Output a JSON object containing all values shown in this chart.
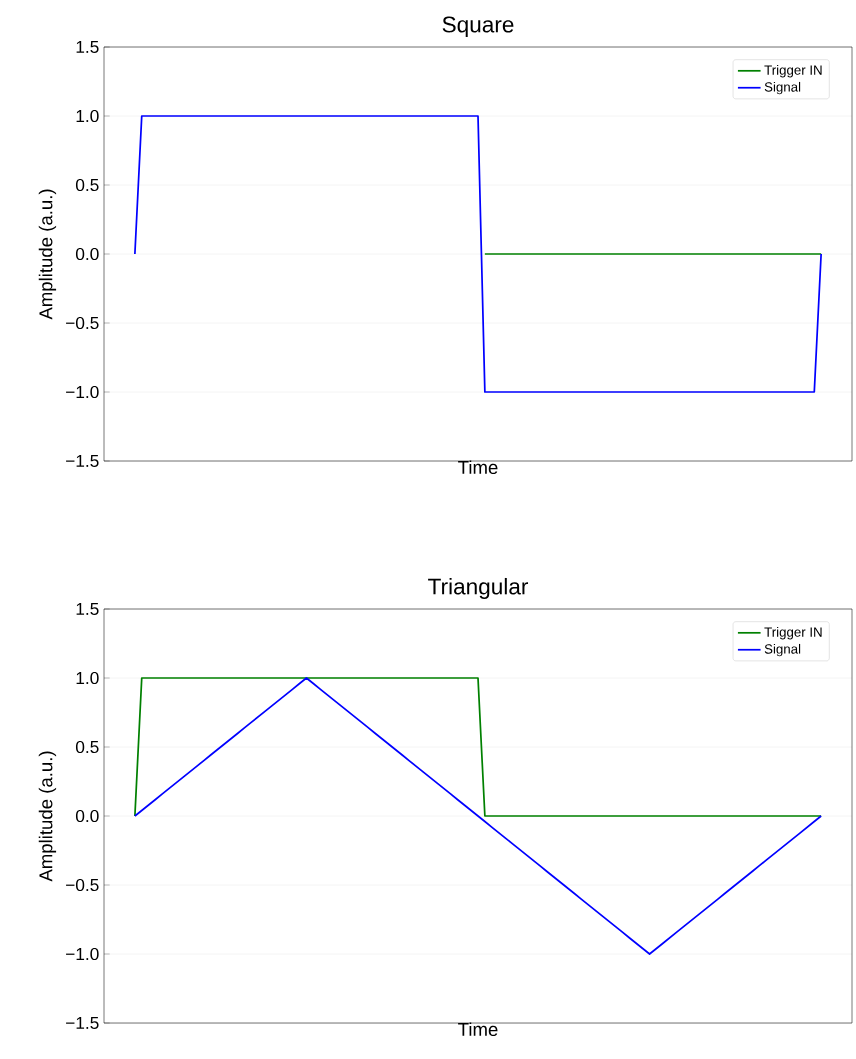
{
  "chart_data": [
    {
      "type": "line",
      "title": "Square",
      "xlabel": "Time",
      "ylabel": "Amplitude (a.u.)",
      "categories": [
        null,
        null,
        null,
        null,
        null,
        null,
        null,
        null,
        null,
        null,
        null,
        null,
        null,
        null,
        null,
        null,
        null,
        null,
        null,
        null,
        null,
        null,
        null,
        null,
        null,
        null,
        null,
        null,
        null,
        null,
        null,
        null,
        null,
        null,
        null,
        null,
        null,
        null,
        null,
        null,
        null,
        null,
        null,
        null,
        null,
        null,
        null,
        null,
        null,
        null,
        null,
        null,
        null,
        null,
        null,
        null,
        null,
        null,
        null,
        null,
        null,
        null,
        null,
        null,
        null,
        null,
        null,
        null,
        null,
        null,
        null,
        null,
        null,
        null,
        null,
        null,
        null,
        null,
        null,
        null,
        null,
        null,
        null,
        null,
        null,
        null,
        null,
        null,
        null,
        null,
        null,
        null,
        null,
        null,
        null,
        null,
        null,
        null,
        null,
        null,
        null,
        null,
        null,
        null,
        null,
        null,
        null,
        null,
        null
      ],
      "ylim": [
        -1.5,
        1.5
      ],
      "yticks": [
        {
          "value": -1.5,
          "label": "−1.5"
        },
        {
          "value": -1.0,
          "label": "−1.0"
        },
        {
          "value": -0.5,
          "label": "−0.5"
        },
        {
          "value": 0.0,
          "label": "0.0"
        },
        {
          "value": 0.5,
          "label": "0.5"
        },
        {
          "value": 1.0,
          "label": "1.0"
        },
        {
          "value": 1.5,
          "label": "1.5"
        }
      ],
      "tick_labels": "y",
      "grid": "y",
      "legend": "top right",
      "series": [
        {
          "name": "Trigger IN",
          "color": "#008000",
          "values": [
            null,
            null,
            null,
            null,
            null,
            null,
            null,
            null,
            null,
            null,
            null,
            null,
            null,
            null,
            null,
            null,
            null,
            null,
            null,
            null,
            null,
            null,
            null,
            null,
            null,
            null,
            null,
            null,
            null,
            null,
            null,
            null,
            null,
            null,
            null,
            null,
            null,
            null,
            null,
            null,
            null,
            null,
            null,
            null,
            null,
            null,
            null,
            null,
            null,
            null,
            null,
            null,
            null,
            null,
            null,
            0,
            0,
            0,
            0,
            0,
            0,
            0,
            0,
            0,
            0,
            0,
            0,
            0,
            0,
            0,
            0,
            0,
            0,
            0,
            0,
            0,
            0,
            0,
            0,
            0,
            0,
            0,
            0,
            0,
            0,
            0,
            0,
            0,
            0,
            0,
            0,
            0,
            0,
            0,
            0,
            0,
            0,
            0,
            0,
            0,
            0,
            0,
            0,
            0,
            0,
            null,
            null,
            null,
            null
          ]
        },
        {
          "name": "Signal",
          "color": "#0000ff",
          "values": [
            null,
            null,
            null,
            null,
            0,
            1,
            1,
            1,
            1,
            1,
            1,
            1,
            1,
            1,
            1,
            1,
            1,
            1,
            1,
            1,
            1,
            1,
            1,
            1,
            1,
            1,
            1,
            1,
            1,
            1,
            1,
            1,
            1,
            1,
            1,
            1,
            1,
            1,
            1,
            1,
            1,
            1,
            1,
            1,
            1,
            1,
            1,
            1,
            1,
            1,
            1,
            1,
            1,
            1,
            1,
            -1,
            -1,
            -1,
            -1,
            -1,
            -1,
            -1,
            -1,
            -1,
            -1,
            -1,
            -1,
            -1,
            -1,
            -1,
            -1,
            -1,
            -1,
            -1,
            -1,
            -1,
            -1,
            -1,
            -1,
            -1,
            -1,
            -1,
            -1,
            -1,
            -1,
            -1,
            -1,
            -1,
            -1,
            -1,
            -1,
            -1,
            -1,
            -1,
            -1,
            -1,
            -1,
            -1,
            -1,
            -1,
            -1,
            -1,
            -1,
            -1,
            0,
            null,
            null,
            null,
            null
          ]
        }
      ]
    },
    {
      "type": "line",
      "title": "Triangular",
      "xlabel": "Time",
      "ylabel": "Amplitude (a.u.)",
      "categories": [
        null,
        null,
        null,
        null,
        null,
        null,
        null,
        null,
        null,
        null,
        null,
        null,
        null,
        null,
        null,
        null,
        null,
        null,
        null,
        null,
        null,
        null,
        null,
        null,
        null,
        null,
        null,
        null,
        null,
        null,
        null,
        null,
        null,
        null,
        null,
        null,
        null,
        null,
        null,
        null,
        null,
        null,
        null,
        null,
        null,
        null,
        null,
        null,
        null,
        null,
        null,
        null,
        null,
        null,
        null,
        null,
        null,
        null,
        null,
        null,
        null,
        null,
        null,
        null,
        null,
        null,
        null,
        null,
        null,
        null,
        null,
        null,
        null,
        null,
        null,
        null,
        null,
        null,
        null,
        null,
        null,
        null,
        null,
        null,
        null,
        null,
        null,
        null,
        null,
        null,
        null,
        null,
        null,
        null,
        null,
        null,
        null,
        null,
        null,
        null,
        null,
        null,
        null,
        null,
        null,
        null,
        null,
        null,
        null
      ],
      "ylim": [
        -1.5,
        1.5
      ],
      "yticks": [
        {
          "value": -1.5,
          "label": "−1.5"
        },
        {
          "value": -1.0,
          "label": "−1.0"
        },
        {
          "value": -0.5,
          "label": "−0.5"
        },
        {
          "value": 0.0,
          "label": "0.0"
        },
        {
          "value": 0.5,
          "label": "0.5"
        },
        {
          "value": 1.0,
          "label": "1.0"
        },
        {
          "value": 1.5,
          "label": "1.5"
        }
      ],
      "tick_labels": "y",
      "grid": "y",
      "legend": "top right",
      "series": [
        {
          "name": "Trigger IN",
          "color": "#008000",
          "values": [
            null,
            null,
            null,
            null,
            0,
            1,
            1,
            1,
            1,
            1,
            1,
            1,
            1,
            1,
            1,
            1,
            1,
            1,
            1,
            1,
            1,
            1,
            1,
            1,
            1,
            1,
            1,
            1,
            1,
            1,
            1,
            1,
            1,
            1,
            1,
            1,
            1,
            1,
            1,
            1,
            1,
            1,
            1,
            1,
            1,
            1,
            1,
            1,
            1,
            1,
            1,
            1,
            1,
            1,
            1,
            0,
            0,
            0,
            0,
            0,
            0,
            0,
            0,
            0,
            0,
            0,
            0,
            0,
            0,
            0,
            0,
            0,
            0,
            0,
            0,
            0,
            0,
            0,
            0,
            0,
            0,
            0,
            0,
            0,
            0,
            0,
            0,
            0,
            0,
            0,
            0,
            0,
            0,
            0,
            0,
            0,
            0,
            0,
            0,
            0,
            0,
            0,
            0,
            0,
            0,
            null,
            null,
            null,
            null
          ]
        },
        {
          "name": "Signal",
          "color": "#0000ff",
          "values": [
            null,
            null,
            null,
            null,
            0,
            0.04,
            0.08,
            0.12,
            0.16,
            0.2,
            0.24,
            0.28,
            0.32,
            0.36,
            0.4,
            0.44,
            0.48,
            0.52,
            0.56,
            0.6,
            0.64,
            0.68,
            0.72,
            0.76,
            0.8,
            0.84,
            0.88,
            0.92,
            0.96,
            1,
            0.96,
            0.92,
            0.88,
            0.84,
            0.8,
            0.76,
            0.72,
            0.68,
            0.64,
            0.6,
            0.56,
            0.52,
            0.48,
            0.44,
            0.4,
            0.36,
            0.32,
            0.28,
            0.24,
            0.2,
            0.16,
            0.12,
            0.08,
            0.04,
            0,
            -0.04,
            -0.08,
            -0.12,
            -0.16,
            -0.2,
            -0.24,
            -0.28,
            -0.32,
            -0.36,
            -0.4,
            -0.44,
            -0.48,
            -0.52,
            -0.56,
            -0.6,
            -0.64,
            -0.68,
            -0.72,
            -0.76,
            -0.8,
            -0.84,
            -0.88,
            -0.92,
            -0.96,
            -1,
            -0.96,
            -0.92,
            -0.88,
            -0.84,
            -0.8,
            -0.76,
            -0.72,
            -0.68,
            -0.64,
            -0.6,
            -0.56,
            -0.52,
            -0.48,
            -0.44,
            -0.4,
            -0.36,
            -0.32,
            -0.28,
            -0.24,
            -0.2,
            -0.16,
            -0.12,
            -0.08,
            -0.04,
            0,
            null,
            null,
            null,
            null
          ]
        }
      ]
    }
  ]
}
